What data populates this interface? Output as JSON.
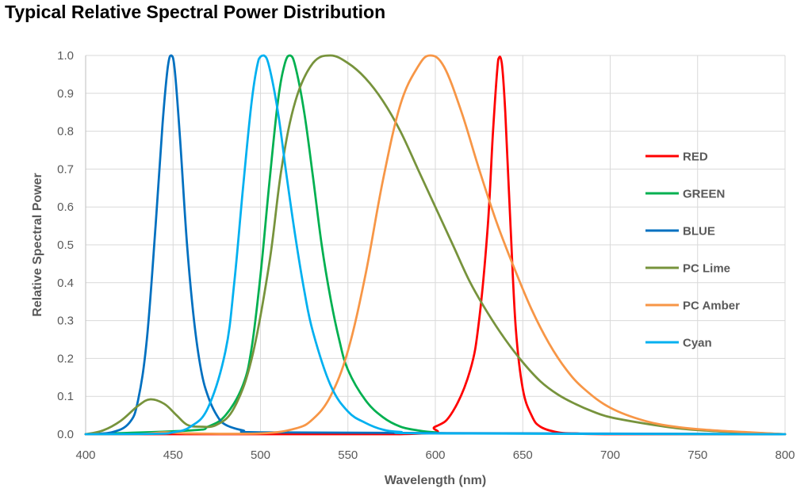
{
  "chart_data": {
    "type": "line",
    "title": "Typical Relative Spectral Power Distribution",
    "xlabel": "Wavelength (nm)",
    "ylabel": "Relative Spectral Power",
    "xlim": [
      400,
      800
    ],
    "ylim": [
      0,
      1.0
    ],
    "xticks": [
      "400",
      "450",
      "500",
      "550",
      "600",
      "650",
      "700",
      "750",
      "800"
    ],
    "yticks": [
      "0.0",
      "0.1",
      "0.2",
      "0.3",
      "0.4",
      "0.5",
      "0.6",
      "0.7",
      "0.8",
      "0.9",
      "1.0"
    ],
    "grid": true,
    "legend_position": "right",
    "series": [
      {
        "name": "RED",
        "color": "#ff0000",
        "x": [
          400,
          580,
          600,
          610,
          620,
          625,
          630,
          633,
          636,
          638,
          640,
          643,
          646,
          650,
          655,
          660,
          670,
          680,
          700,
          800
        ],
        "y": [
          0,
          0,
          0.02,
          0.06,
          0.17,
          0.3,
          0.55,
          0.8,
          0.99,
          0.98,
          0.85,
          0.55,
          0.28,
          0.12,
          0.05,
          0.02,
          0.005,
          0.002,
          0,
          0
        ]
      },
      {
        "name": "GREEN",
        "color": "#00b050",
        "x": [
          400,
          460,
          470,
          480,
          490,
          495,
          500,
          505,
          510,
          514,
          517,
          520,
          525,
          530,
          535,
          540,
          545,
          550,
          560,
          570,
          580,
          590,
          600,
          620,
          800
        ],
        "y": [
          0,
          0.01,
          0.02,
          0.05,
          0.13,
          0.23,
          0.42,
          0.66,
          0.88,
          0.98,
          1.0,
          0.97,
          0.85,
          0.68,
          0.5,
          0.36,
          0.25,
          0.17,
          0.09,
          0.045,
          0.02,
          0.01,
          0.005,
          0.002,
          0
        ]
      },
      {
        "name": "BLUE",
        "color": "#0070c0",
        "x": [
          400,
          415,
          425,
          430,
          435,
          440,
          444,
          447,
          449,
          451,
          454,
          458,
          462,
          466,
          470,
          475,
          480,
          490,
          500,
          600,
          800
        ],
        "y": [
          0,
          0.005,
          0.03,
          0.09,
          0.25,
          0.55,
          0.82,
          0.97,
          1.0,
          0.96,
          0.78,
          0.5,
          0.3,
          0.17,
          0.1,
          0.05,
          0.025,
          0.01,
          0.005,
          0.003,
          0
        ]
      },
      {
        "name": "PC Lime",
        "color": "#77933c",
        "x": [
          400,
          410,
          420,
          430,
          437,
          445,
          452,
          458,
          465,
          475,
          485,
          495,
          505,
          512,
          520,
          530,
          540,
          550,
          560,
          570,
          580,
          590,
          600,
          610,
          620,
          630,
          640,
          650,
          660,
          670,
          680,
          690,
          700,
          720,
          740,
          760,
          780,
          800
        ],
        "y": [
          0,
          0.01,
          0.035,
          0.075,
          0.092,
          0.08,
          0.05,
          0.025,
          0.02,
          0.025,
          0.07,
          0.2,
          0.45,
          0.7,
          0.88,
          0.98,
          1.0,
          0.98,
          0.94,
          0.88,
          0.8,
          0.7,
          0.6,
          0.5,
          0.4,
          0.32,
          0.25,
          0.19,
          0.14,
          0.105,
          0.08,
          0.06,
          0.045,
          0.028,
          0.015,
          0.008,
          0.004,
          0
        ]
      },
      {
        "name": "PC Amber",
        "color": "#f79646",
        "x": [
          400,
          430,
          445,
          460,
          500,
          520,
          530,
          540,
          550,
          560,
          570,
          580,
          590,
          597,
          605,
          615,
          625,
          635,
          645,
          655,
          665,
          675,
          685,
          700,
          720,
          740,
          760,
          780,
          800
        ],
        "y": [
          0,
          0,
          0.005,
          0.002,
          0.002,
          0.015,
          0.04,
          0.1,
          0.22,
          0.42,
          0.67,
          0.87,
          0.97,
          1.0,
          0.97,
          0.85,
          0.7,
          0.56,
          0.44,
          0.33,
          0.24,
          0.17,
          0.12,
          0.07,
          0.035,
          0.018,
          0.01,
          0.005,
          0
        ]
      },
      {
        "name": "Cyan",
        "color": "#00b0f0",
        "x": [
          400,
          440,
          450,
          460,
          470,
          480,
          485,
          490,
          495,
          499,
          502,
          505,
          510,
          515,
          520,
          525,
          530,
          540,
          550,
          560,
          570,
          580,
          600,
          800
        ],
        "y": [
          0,
          0.001,
          0.005,
          0.02,
          0.07,
          0.22,
          0.4,
          0.65,
          0.88,
          0.99,
          1.0,
          0.97,
          0.85,
          0.68,
          0.52,
          0.38,
          0.27,
          0.13,
          0.06,
          0.03,
          0.012,
          0.006,
          0.002,
          0
        ]
      }
    ]
  }
}
